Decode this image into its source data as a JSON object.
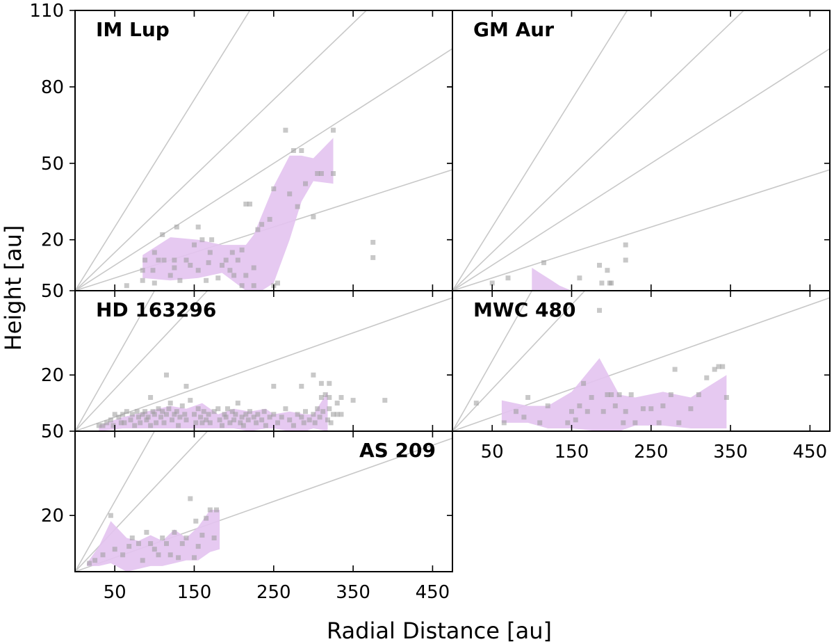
{
  "figure": {
    "xlabel": "Radial Distance [au]",
    "ylabel": "Height [au]"
  },
  "colors": {
    "band": "#e3c3ef",
    "points": "#9a9a9a",
    "zr_lines": "#c8c8c8",
    "axes": "#000000"
  },
  "chart_data": [
    {
      "type": "scatter",
      "title": "IM Lup",
      "xlim": [
        0,
        475
      ],
      "ylim": [
        0,
        110
      ],
      "xticks": [
        50,
        150,
        250,
        350,
        450
      ],
      "yticks": [
        20,
        50,
        80,
        110
      ],
      "x_tick_labels_shown": false,
      "zr_lines": [
        0.1,
        0.2,
        0.3,
        0.5
      ],
      "band": {
        "x": [
          85,
          120,
          155,
          185,
          215,
          225,
          250,
          270,
          285,
          300,
          325
        ],
        "lower": [
          5,
          4,
          5,
          7,
          0,
          -2,
          3,
          20,
          35,
          43,
          42
        ],
        "upper": [
          14,
          21,
          20,
          18,
          18,
          22,
          41,
          53,
          53,
          52,
          60
        ]
      },
      "points": [
        [
          65,
          2
        ],
        [
          85,
          4
        ],
        [
          85,
          8
        ],
        [
          88,
          12
        ],
        [
          98,
          8
        ],
        [
          100,
          3
        ],
        [
          100,
          15
        ],
        [
          105,
          12
        ],
        [
          110,
          22
        ],
        [
          112,
          12
        ],
        [
          120,
          6
        ],
        [
          125,
          9
        ],
        [
          125,
          12
        ],
        [
          128,
          25
        ],
        [
          132,
          4
        ],
        [
          140,
          12
        ],
        [
          145,
          10
        ],
        [
          150,
          18
        ],
        [
          155,
          8
        ],
        [
          155,
          25
        ],
        [
          160,
          20
        ],
        [
          165,
          4
        ],
        [
          168,
          11
        ],
        [
          170,
          15
        ],
        [
          172,
          20
        ],
        [
          180,
          5
        ],
        [
          185,
          10
        ],
        [
          190,
          12
        ],
        [
          195,
          8
        ],
        [
          198,
          15
        ],
        [
          200,
          6
        ],
        [
          205,
          12
        ],
        [
          210,
          2
        ],
        [
          210,
          16
        ],
        [
          215,
          6
        ],
        [
          215,
          34
        ],
        [
          220,
          34
        ],
        [
          225,
          2
        ],
        [
          225,
          9
        ],
        [
          230,
          24
        ],
        [
          235,
          26
        ],
        [
          245,
          28
        ],
        [
          250,
          2
        ],
        [
          250,
          40
        ],
        [
          255,
          3
        ],
        [
          265,
          63
        ],
        [
          270,
          38
        ],
        [
          275,
          55
        ],
        [
          285,
          55
        ],
        [
          280,
          33
        ],
        [
          290,
          42
        ],
        [
          300,
          29
        ],
        [
          305,
          46
        ],
        [
          310,
          46
        ],
        [
          325,
          46
        ],
        [
          325,
          63
        ],
        [
          375,
          13
        ],
        [
          375,
          19
        ]
      ]
    },
    {
      "type": "scatter",
      "title": "GM Aur",
      "xlim": [
        0,
        475
      ],
      "ylim": [
        0,
        110
      ],
      "xticks": [
        50,
        150,
        250,
        350,
        450
      ],
      "yticks": [
        20,
        50,
        80,
        110
      ],
      "x_tick_labels_shown": false,
      "y_tick_labels_shown": false,
      "zr_lines": [
        0.1,
        0.2,
        0.3,
        0.5
      ],
      "band": {
        "x": [
          100,
          110,
          125,
          135,
          150
        ],
        "lower": [
          0,
          0,
          0,
          0,
          0
        ],
        "upper": [
          9,
          7,
          4,
          2,
          0
        ]
      },
      "points": [
        [
          50,
          3
        ],
        [
          70,
          5
        ],
        [
          115,
          11
        ],
        [
          160,
          5
        ],
        [
          185,
          10
        ],
        [
          188,
          3
        ],
        [
          195,
          8
        ],
        [
          198,
          3
        ],
        [
          200,
          3
        ],
        [
          218,
          18
        ],
        [
          218,
          12
        ]
      ]
    },
    {
      "type": "scatter",
      "title": "HD 163296",
      "xlim": [
        0,
        475
      ],
      "ylim": [
        0,
        50
      ],
      "xticks": [
        50,
        150,
        250,
        350,
        450
      ],
      "yticks": [
        20,
        50
      ],
      "x_tick_labels_shown": false,
      "zr_lines": [
        0.1,
        0.3,
        0.5
      ],
      "band": {
        "x": [
          30,
          60,
          90,
          120,
          140,
          160,
          180,
          200,
          220,
          240,
          250,
          270,
          290,
          300,
          318
        ],
        "lower": [
          0,
          1,
          1,
          1,
          1,
          1,
          1,
          1,
          0,
          1,
          1,
          0,
          0,
          1,
          0
        ],
        "upper": [
          2,
          5,
          7,
          9,
          8,
          10,
          6,
          8,
          7,
          8,
          6,
          7,
          6,
          6,
          14
        ]
      },
      "points": [
        [
          30,
          2
        ],
        [
          35,
          2
        ],
        [
          40,
          3
        ],
        [
          45,
          4
        ],
        [
          48,
          2
        ],
        [
          50,
          6
        ],
        [
          55,
          5
        ],
        [
          58,
          3
        ],
        [
          60,
          6
        ],
        [
          62,
          3
        ],
        [
          65,
          7
        ],
        [
          70,
          4
        ],
        [
          72,
          6
        ],
        [
          75,
          2
        ],
        [
          78,
          7
        ],
        [
          80,
          5
        ],
        [
          82,
          3
        ],
        [
          85,
          6
        ],
        [
          88,
          7
        ],
        [
          90,
          4
        ],
        [
          92,
          5
        ],
        [
          95,
          2
        ],
        [
          98,
          7
        ],
        [
          100,
          6
        ],
        [
          102,
          3
        ],
        [
          105,
          8
        ],
        [
          108,
          5
        ],
        [
          110,
          7
        ],
        [
          112,
          3
        ],
        [
          115,
          6
        ],
        [
          118,
          8
        ],
        [
          120,
          10
        ],
        [
          122,
          4
        ],
        [
          125,
          6
        ],
        [
          128,
          7
        ],
        [
          130,
          2
        ],
        [
          132,
          5
        ],
        [
          135,
          9
        ],
        [
          138,
          6
        ],
        [
          140,
          4
        ],
        [
          145,
          11
        ],
        [
          150,
          6
        ],
        [
          152,
          3
        ],
        [
          155,
          8
        ],
        [
          158,
          5
        ],
        [
          160,
          3
        ],
        [
          162,
          7
        ],
        [
          165,
          4
        ],
        [
          168,
          6
        ],
        [
          170,
          3
        ],
        [
          175,
          7
        ],
        [
          180,
          8
        ],
        [
          182,
          4
        ],
        [
          185,
          2
        ],
        [
          188,
          6
        ],
        [
          190,
          5
        ],
        [
          192,
          8
        ],
        [
          195,
          3
        ],
        [
          198,
          7
        ],
        [
          200,
          4
        ],
        [
          202,
          6
        ],
        [
          205,
          10
        ],
        [
          208,
          3
        ],
        [
          210,
          5
        ],
        [
          212,
          2
        ],
        [
          215,
          6
        ],
        [
          218,
          4
        ],
        [
          220,
          7
        ],
        [
          225,
          5
        ],
        [
          228,
          3
        ],
        [
          230,
          6
        ],
        [
          235,
          4
        ],
        [
          238,
          7
        ],
        [
          240,
          2
        ],
        [
          245,
          5
        ],
        [
          250,
          6
        ],
        [
          255,
          3
        ],
        [
          260,
          5
        ],
        [
          265,
          8
        ],
        [
          270,
          4
        ],
        [
          275,
          2
        ],
        [
          280,
          6
        ],
        [
          285,
          5
        ],
        [
          288,
          3
        ],
        [
          290,
          7
        ],
        [
          295,
          4
        ],
        [
          300,
          6
        ],
        [
          302,
          3
        ],
        [
          305,
          8
        ],
        [
          308,
          5
        ],
        [
          310,
          12
        ],
        [
          312,
          7
        ],
        [
          315,
          13
        ],
        [
          318,
          4
        ],
        [
          320,
          17
        ],
        [
          320,
          8
        ],
        [
          322,
          3
        ],
        [
          325,
          6
        ],
        [
          330,
          6
        ],
        [
          335,
          6
        ],
        [
          95,
          12
        ],
        [
          115,
          20
        ],
        [
          140,
          16
        ],
        [
          250,
          16
        ],
        [
          285,
          16
        ],
        [
          300,
          20
        ],
        [
          350,
          11
        ],
        [
          390,
          11
        ],
        [
          310,
          17
        ],
        [
          320,
          12
        ],
        [
          330,
          10
        ],
        [
          335,
          12
        ]
      ]
    },
    {
      "type": "scatter",
      "title": "MWC 480",
      "xlim": [
        0,
        475
      ],
      "ylim": [
        0,
        50
      ],
      "xticks": [
        50,
        150,
        250,
        350,
        450
      ],
      "yticks": [
        20,
        50
      ],
      "x_tick_labels_shown": true,
      "y_tick_labels_shown": false,
      "zr_lines": [
        0.1,
        0.3,
        0.5
      ],
      "band": {
        "x": [
          62,
          95,
          120,
          150,
          185,
          210,
          230,
          265,
          300,
          345
        ],
        "lower": [
          3,
          3,
          1,
          1,
          0,
          0,
          2,
          2,
          1,
          1
        ],
        "upper": [
          11,
          9,
          9,
          14,
          26,
          13,
          12,
          14,
          12,
          20
        ]
      },
      "points": [
        [
          30,
          10
        ],
        [
          65,
          3
        ],
        [
          80,
          7
        ],
        [
          90,
          5
        ],
        [
          95,
          12
        ],
        [
          110,
          3
        ],
        [
          120,
          9
        ],
        [
          145,
          3
        ],
        [
          150,
          7
        ],
        [
          155,
          4
        ],
        [
          160,
          9
        ],
        [
          165,
          17
        ],
        [
          170,
          7
        ],
        [
          175,
          12
        ],
        [
          185,
          43
        ],
        [
          190,
          7
        ],
        [
          195,
          13
        ],
        [
          200,
          13
        ],
        [
          205,
          9
        ],
        [
          210,
          13
        ],
        [
          215,
          3
        ],
        [
          218,
          7
        ],
        [
          225,
          13
        ],
        [
          230,
          3
        ],
        [
          240,
          8
        ],
        [
          250,
          8
        ],
        [
          260,
          3
        ],
        [
          265,
          9
        ],
        [
          275,
          13
        ],
        [
          280,
          22
        ],
        [
          285,
          3
        ],
        [
          300,
          8
        ],
        [
          310,
          13
        ],
        [
          320,
          19
        ],
        [
          330,
          22
        ],
        [
          335,
          23
        ],
        [
          340,
          23
        ],
        [
          345,
          12
        ]
      ]
    },
    {
      "type": "scatter",
      "title": "AS 209",
      "xlim": [
        0,
        475
      ],
      "ylim": [
        0,
        50
      ],
      "xticks": [
        50,
        150,
        250,
        350,
        450
      ],
      "yticks": [
        20,
        50
      ],
      "x_tick_labels_shown": true,
      "zr_lines": [
        0.1,
        0.3,
        0.5
      ],
      "band": {
        "x": [
          15,
          30,
          45,
          65,
          80,
          95,
          110,
          125,
          140,
          155,
          170,
          182
        ],
        "lower": [
          2,
          2,
          3,
          0,
          1,
          2,
          2,
          3,
          4,
          4,
          7,
          8
        ],
        "upper": [
          3,
          9,
          18,
          12,
          11,
          13,
          11,
          15,
          12,
          16,
          22,
          22
        ]
      },
      "points": [
        [
          18,
          3
        ],
        [
          25,
          4
        ],
        [
          35,
          6
        ],
        [
          45,
          20
        ],
        [
          50,
          8
        ],
        [
          60,
          6
        ],
        [
          68,
          9
        ],
        [
          72,
          12
        ],
        [
          80,
          10
        ],
        [
          85,
          4
        ],
        [
          90,
          14
        ],
        [
          95,
          10
        ],
        [
          100,
          8
        ],
        [
          105,
          6
        ],
        [
          110,
          12
        ],
        [
          115,
          10
        ],
        [
          120,
          6
        ],
        [
          125,
          14
        ],
        [
          130,
          5
        ],
        [
          135,
          10
        ],
        [
          140,
          12
        ],
        [
          145,
          26
        ],
        [
          150,
          5
        ],
        [
          152,
          18
        ],
        [
          155,
          9
        ],
        [
          160,
          13
        ],
        [
          165,
          19
        ],
        [
          170,
          22
        ],
        [
          175,
          12
        ],
        [
          178,
          22
        ]
      ]
    }
  ]
}
